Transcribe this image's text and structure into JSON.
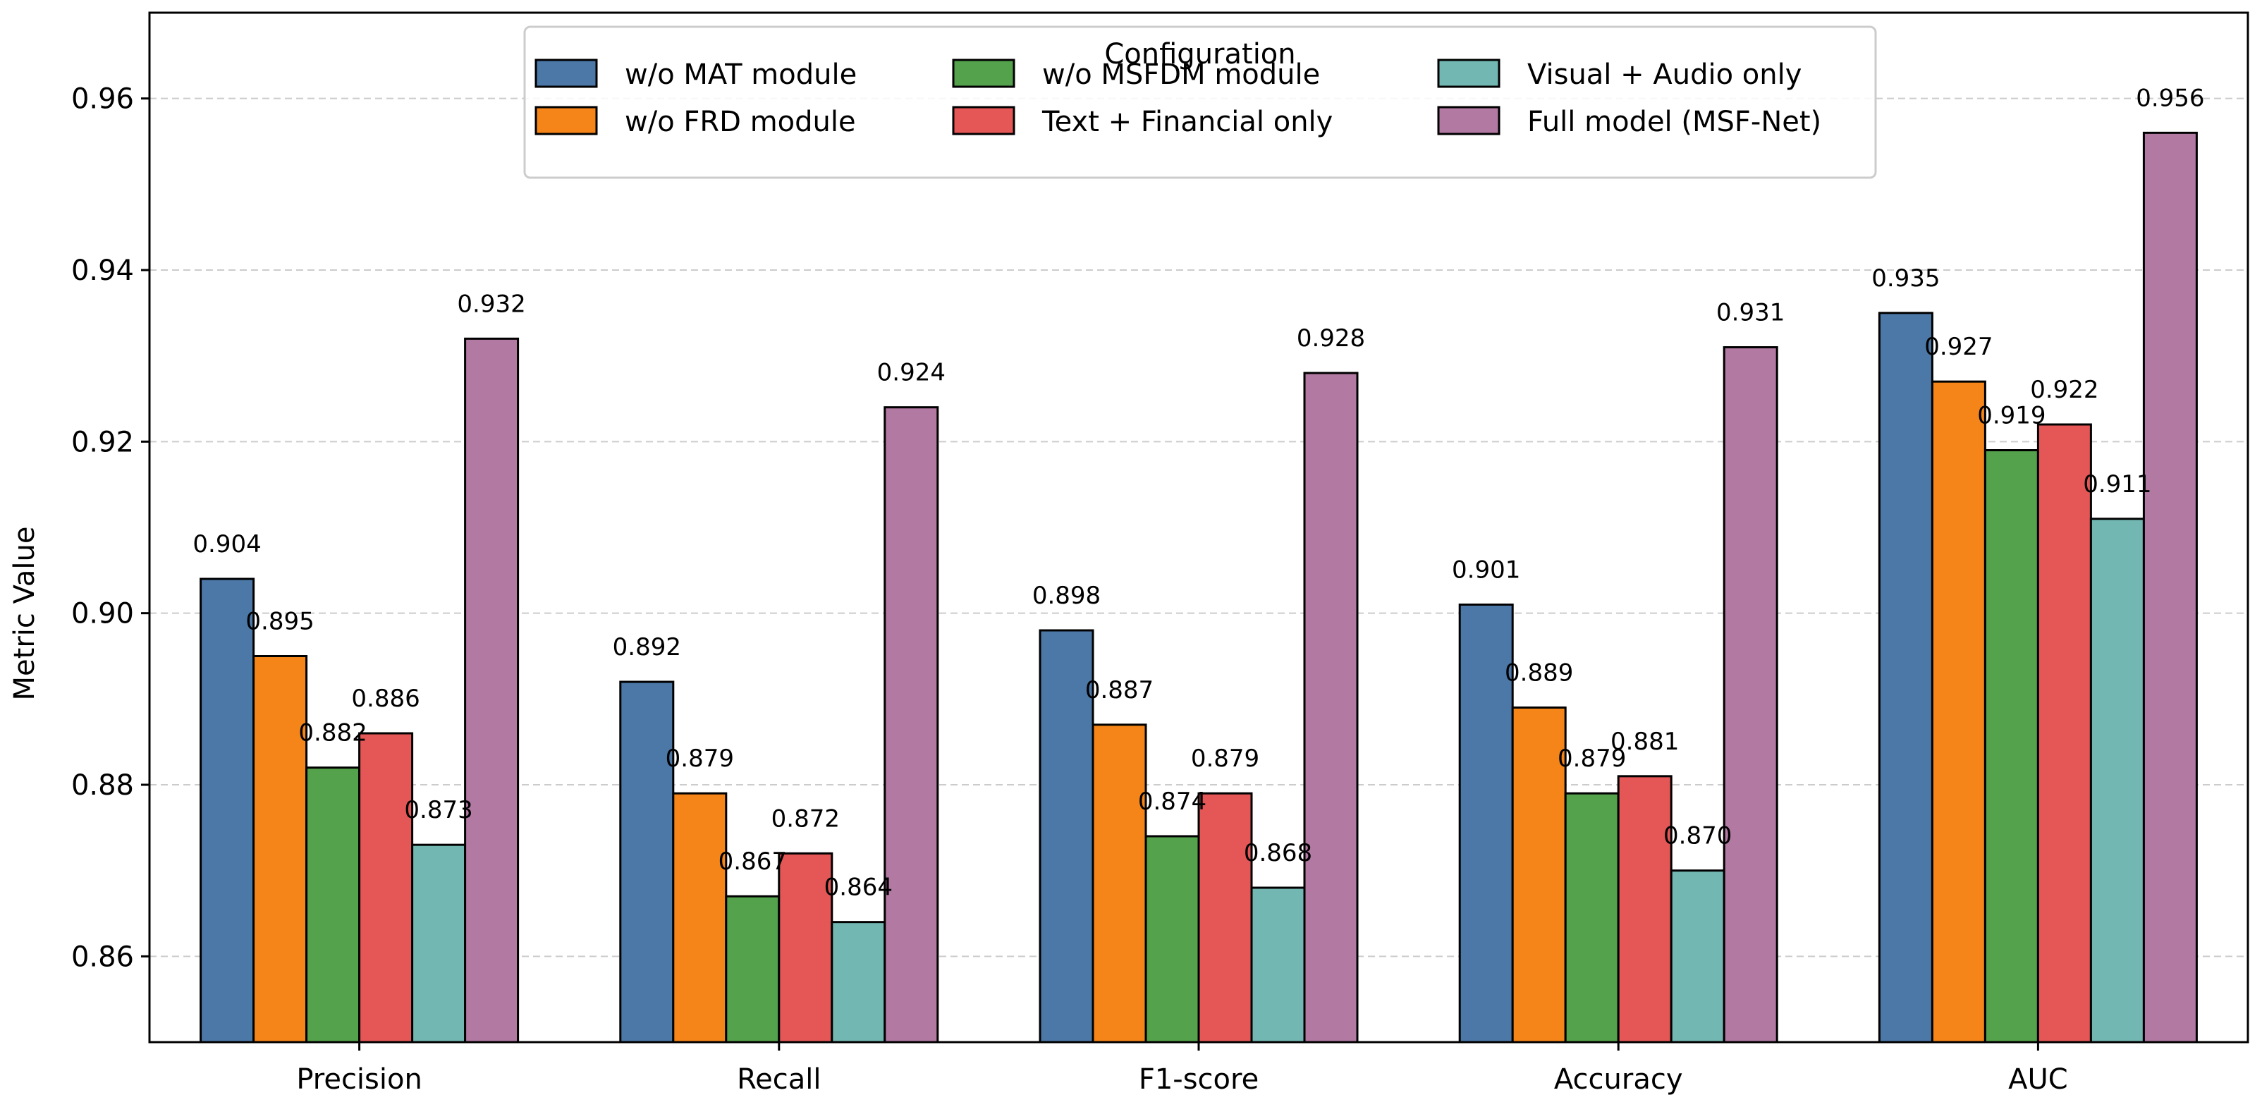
{
  "chart_data": {
    "type": "bar",
    "title": "",
    "xlabel": "",
    "ylabel": "Metric Value",
    "ylim": [
      0.85,
      0.97
    ],
    "yticks": [
      0.86,
      0.88,
      0.9,
      0.92,
      0.94,
      0.96
    ],
    "ytick_labels": [
      "0.86",
      "0.88",
      "0.90",
      "0.92",
      "0.94",
      "0.96"
    ],
    "grid": "y-dashed",
    "categories": [
      "Precision",
      "Recall",
      "F1-score",
      "Accuracy",
      "AUC"
    ],
    "series": [
      {
        "name": "w/o MAT module",
        "color": "#4c78a8",
        "values": [
          0.904,
          0.892,
          0.898,
          0.901,
          0.935
        ],
        "labels": [
          "0.904",
          "0.892",
          "0.898",
          "0.901",
          "0.935"
        ]
      },
      {
        "name": "w/o FRD module",
        "color": "#f58518",
        "values": [
          0.895,
          0.879,
          0.887,
          0.889,
          0.927
        ],
        "labels": [
          "0.895",
          "0.879",
          "0.887",
          "0.889",
          "0.927"
        ]
      },
      {
        "name": "w/o MSFDM module",
        "color": "#54a24b",
        "values": [
          0.882,
          0.867,
          0.874,
          0.879,
          0.919
        ],
        "labels": [
          "0.882",
          "0.867",
          "0.874",
          "0.879",
          "0.919"
        ]
      },
      {
        "name": "Text + Financial only",
        "color": "#e45756",
        "values": [
          0.886,
          0.872,
          0.879,
          0.881,
          0.922
        ],
        "labels": [
          "0.886",
          "0.872",
          "0.879",
          "0.881",
          "0.922"
        ]
      },
      {
        "name": "Visual + Audio only",
        "color": "#72b7b2",
        "values": [
          0.873,
          0.864,
          0.868,
          0.87,
          0.911
        ],
        "labels": [
          "0.873",
          "0.864",
          "0.868",
          "0.870",
          "0.911"
        ]
      },
      {
        "name": "Full model (MSF-Net)",
        "color": "#b279a2",
        "values": [
          0.932,
          0.924,
          0.928,
          0.931,
          0.956
        ],
        "labels": [
          "0.932",
          "0.924",
          "0.928",
          "0.931",
          "0.956"
        ]
      }
    ],
    "legend": {
      "title": "Configuration",
      "placement": "top-center",
      "columns": 3
    }
  }
}
